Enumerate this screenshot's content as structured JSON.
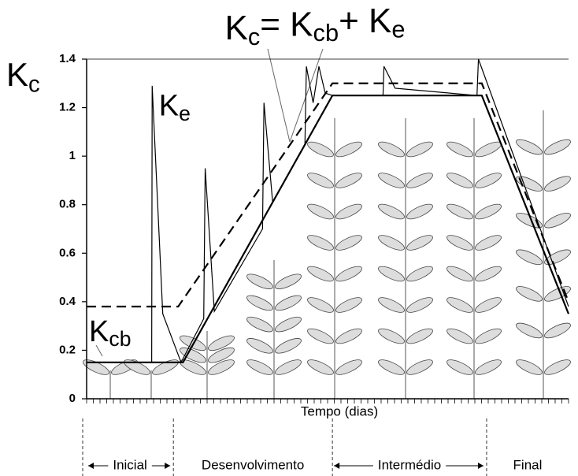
{
  "chart_data": {
    "type": "line",
    "title": [
      {
        "text": "K"
      },
      {
        "text": "c",
        "sub": true
      },
      {
        "text": "= K"
      },
      {
        "text": "cb",
        "sub": true
      },
      {
        "text": "+ K"
      },
      {
        "text": "e",
        "sub": true
      }
    ],
    "y_label": [
      {
        "text": "K"
      },
      {
        "text": "c",
        "sub": true
      }
    ],
    "annotations": [
      {
        "parts": [
          {
            "text": "K"
          },
          {
            "text": "e",
            "sub": true
          }
        ],
        "x": 15,
        "y": 1.2
      },
      {
        "parts": [
          {
            "text": "K"
          },
          {
            "text": "cb",
            "sub": true
          }
        ],
        "x": 0.5,
        "y": 0.27
      }
    ],
    "x_label": "Tempo (dias)",
    "xlim": [
      0,
      100
    ],
    "ylim": [
      0,
      1.4
    ],
    "yticks": [
      0,
      0.2,
      0.4,
      0.6,
      0.8,
      1,
      1.2,
      1.4
    ],
    "series": [
      {
        "color": "#000000",
        "style": "solid",
        "width": 2.2,
        "x": [
          0,
          20,
          51,
          82,
          100
        ],
        "values": [
          0.15,
          0.15,
          1.25,
          1.25,
          0.35
        ]
      },
      {
        "color": "#000000",
        "style": "dashed",
        "width": 2.2,
        "x": [
          0,
          19,
          51,
          82,
          100
        ],
        "values": [
          0.38,
          0.38,
          1.3,
          1.3,
          0.4
        ]
      },
      {
        "color": "#000000",
        "style": "solid",
        "width": 1.2,
        "x": [
          0,
          13.5,
          13.6,
          15.8,
          19.6,
          24.3,
          24.6,
          26.5,
          36.5,
          36.8,
          38.6,
          45.3,
          45.6,
          47,
          48.2,
          49.5,
          51,
          61.5,
          61.7,
          64,
          81,
          81.3,
          100
        ],
        "values": [
          0.15,
          0.15,
          1.29,
          0.35,
          0.15,
          0.33,
          0.95,
          0.36,
          0.7,
          1.22,
          0.81,
          1.05,
          1.37,
          1.22,
          1.37,
          1.26,
          1.25,
          1.25,
          1.37,
          1.28,
          1.25,
          1.4,
          0.38
        ]
      }
    ],
    "stages": [
      "Inicial",
      "Desenvolvimento",
      "Intermédio",
      "Final"
    ],
    "stage_boundaries": [
      0,
      18,
      51,
      83,
      100
    ]
  }
}
